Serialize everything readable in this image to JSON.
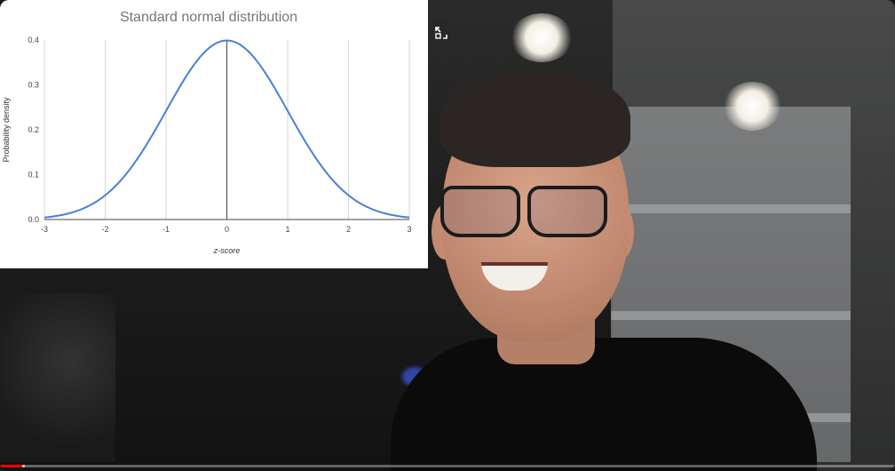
{
  "video": {
    "progress_fraction": 0.025,
    "buffered_fraction": 0.028,
    "accent_color": "#ff0000"
  },
  "controls": {
    "pip_icon": "picture-in-picture-icon"
  },
  "chart_data": {
    "type": "line",
    "title": "Standard normal distribution",
    "xlabel": "z-score",
    "ylabel": "Probability density",
    "xlim": [
      -3,
      3
    ],
    "ylim": [
      0,
      0.4
    ],
    "xticks": [
      "-3",
      "-2",
      "-1",
      "0",
      "1",
      "2",
      "3"
    ],
    "yticks": [
      "0.0",
      "0.1",
      "0.2",
      "0.3",
      "0.4"
    ],
    "grid": "vertical",
    "series": [
      {
        "color": "#4a7fd8",
        "x": [
          -3,
          -2.5,
          -2,
          -1.5,
          -1,
          -0.5,
          0,
          0.5,
          1,
          1.5,
          2,
          2.5,
          3
        ],
        "y": [
          0.0044,
          0.0175,
          0.054,
          0.1295,
          0.242,
          0.3521,
          0.3989,
          0.3521,
          0.242,
          0.1295,
          0.054,
          0.0175,
          0.0044
        ]
      }
    ]
  }
}
